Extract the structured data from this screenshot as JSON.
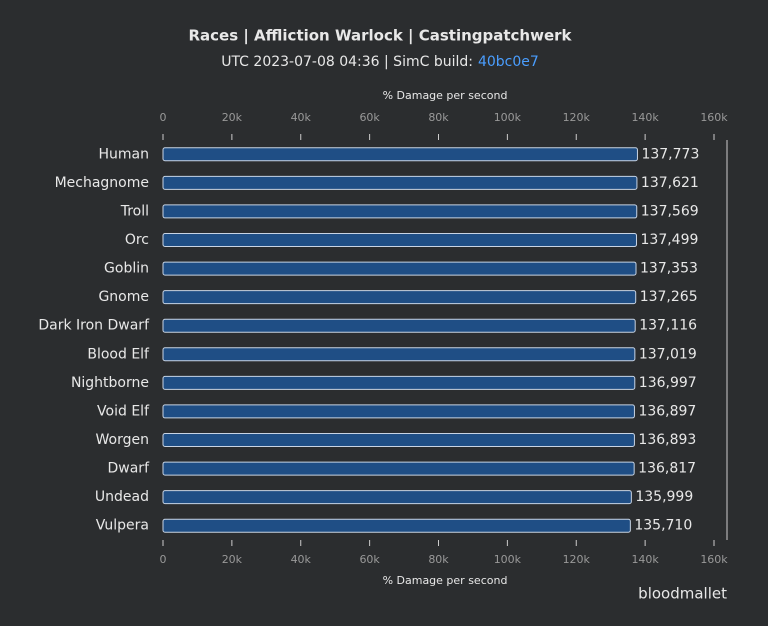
{
  "chart_data": {
    "type": "bar",
    "orientation": "horizontal",
    "title": "Races | Affliction Warlock | Castingpatchwerk",
    "subtitle": "UTC 2023-07-08 04:36 | SimC build:",
    "build": "40bc0e7",
    "x_label": "% Damage per second",
    "watermark": "bloodmallet",
    "categories": [
      "Human",
      "Mechagnome",
      "Troll",
      "Orc",
      "Goblin",
      "Gnome",
      "Dark Iron Dwarf",
      "Blood Elf",
      "Nightborne",
      "Void Elf",
      "Worgen",
      "Dwarf",
      "Undead",
      "Vulpera"
    ],
    "values": [
      137773,
      137621,
      137569,
      137499,
      137353,
      137265,
      137116,
      137019,
      136997,
      136897,
      136893,
      136817,
      135999,
      135710
    ],
    "value_labels": [
      "137,773",
      "137,621",
      "137,569",
      "137,499",
      "137,353",
      "137,265",
      "137,116",
      "137,019",
      "136,997",
      "136,897",
      "136,893",
      "136,817",
      "135,999",
      "135,710"
    ],
    "color": "#1f4e85",
    "xlim": [
      0,
      160000
    ],
    "xticks": [
      0,
      {
        "value": 20000,
        "label": "20k"
      },
      {
        "value": 40000,
        "label": "40k"
      },
      {
        "value": 60000,
        "label": "60k"
      },
      {
        "value": 80000,
        "label": "80k"
      },
      {
        "value": 100000,
        "label": "100k"
      },
      {
        "value": 120000,
        "label": "120k"
      },
      {
        "value": 140000,
        "label": "140k"
      },
      {
        "value": 160000,
        "label": "160k"
      }
    ]
  }
}
